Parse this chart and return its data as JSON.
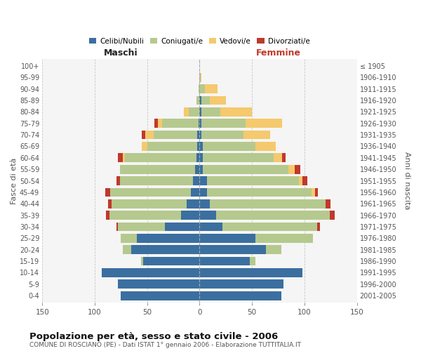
{
  "age_groups": [
    "0-4",
    "5-9",
    "10-14",
    "15-19",
    "20-24",
    "25-29",
    "30-34",
    "35-39",
    "40-44",
    "45-49",
    "50-54",
    "55-59",
    "60-64",
    "65-69",
    "70-74",
    "75-79",
    "80-84",
    "85-89",
    "90-94",
    "95-99",
    "100+"
  ],
  "birth_years": [
    "2001-2005",
    "1996-2000",
    "1991-1995",
    "1986-1990",
    "1981-1985",
    "1976-1980",
    "1971-1975",
    "1966-1970",
    "1961-1965",
    "1956-1960",
    "1951-1955",
    "1946-1950",
    "1941-1945",
    "1936-1940",
    "1931-1935",
    "1926-1930",
    "1921-1925",
    "1916-1920",
    "1911-1915",
    "1906-1910",
    "≤ 1905"
  ],
  "maschi": {
    "celibi": [
      75,
      78,
      93,
      54,
      65,
      60,
      33,
      18,
      12,
      8,
      6,
      4,
      3,
      2,
      2,
      1,
      0,
      0,
      0,
      0,
      0
    ],
    "coniugati": [
      0,
      0,
      0,
      2,
      8,
      15,
      45,
      68,
      72,
      77,
      70,
      72,
      68,
      48,
      42,
      35,
      10,
      3,
      1,
      0,
      0
    ],
    "vedovi": [
      0,
      0,
      0,
      0,
      0,
      0,
      0,
      0,
      0,
      0,
      0,
      0,
      2,
      5,
      8,
      4,
      5,
      0,
      0,
      0,
      0
    ],
    "divorziati": [
      0,
      0,
      0,
      0,
      0,
      0,
      1,
      3,
      3,
      5,
      3,
      0,
      5,
      0,
      3,
      3,
      0,
      0,
      0,
      0,
      0
    ]
  },
  "femmine": {
    "nubili": [
      78,
      80,
      98,
      48,
      63,
      53,
      22,
      16,
      10,
      7,
      7,
      3,
      3,
      3,
      2,
      2,
      2,
      2,
      0,
      0,
      0
    ],
    "coniugate": [
      0,
      0,
      0,
      5,
      15,
      55,
      90,
      108,
      110,
      100,
      88,
      82,
      68,
      50,
      40,
      42,
      18,
      8,
      5,
      1,
      0
    ],
    "vedove": [
      0,
      0,
      0,
      0,
      0,
      0,
      0,
      0,
      0,
      3,
      3,
      6,
      8,
      20,
      25,
      35,
      30,
      15,
      12,
      1,
      0
    ],
    "divorziate": [
      0,
      0,
      0,
      0,
      0,
      0,
      3,
      5,
      5,
      3,
      5,
      5,
      3,
      0,
      0,
      0,
      0,
      0,
      0,
      0,
      0
    ]
  },
  "colors": {
    "celibi_nubili": "#3b6fa0",
    "coniugati_e": "#b5c98e",
    "vedovi_e": "#f5c96d",
    "divorziati_e": "#c0392b"
  },
  "xlim": 150,
  "title": "Popolazione per età, sesso e stato civile - 2006",
  "subtitle": "COMUNE DI ROSCIANO (PE) - Dati ISTAT 1° gennaio 2006 - Elaborazione TUTTITALIA.IT",
  "xlabel_left": "Maschi",
  "xlabel_right": "Femmine",
  "ylabel_left": "Fasce di età",
  "ylabel_right": "Anni di nascita",
  "legend_labels": [
    "Celibi/Nubili",
    "Coniugati/e",
    "Vedovi/e",
    "Divorziati/e"
  ],
  "bg_color": "#ffffff",
  "plot_bg": "#f5f5f5",
  "grid_color": "#cccccc"
}
